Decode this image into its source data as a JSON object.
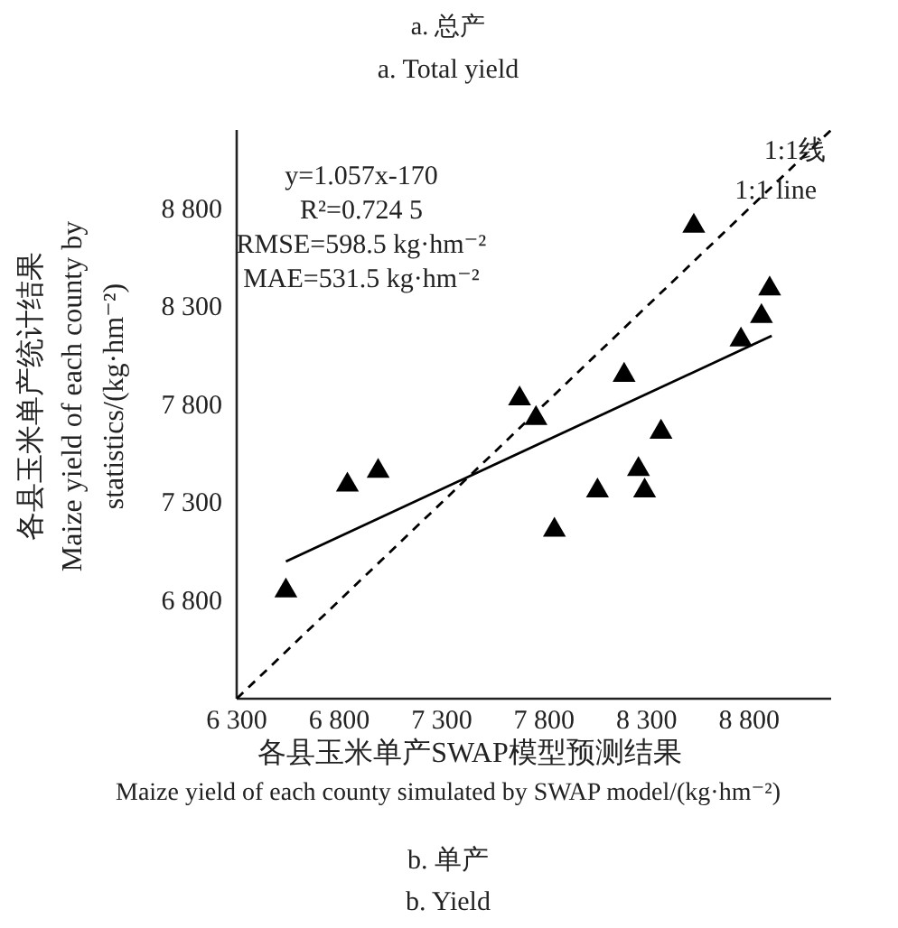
{
  "chart_data": {
    "type": "scatter",
    "title": "b. 单产",
    "subtitle": "b. Yield",
    "xlabel": "各县玉米单产SWAP模型预测结果\nMaize yield of each county simulated by SWAP model/(kg·hm⁻²)",
    "ylabel": "各县玉米单产统计结果\nMaize yield of each county by\nstatistics/(kg·hm⁻²)",
    "annotations": [
      "a. 总产",
      "a. Total yield",
      "y=1.057x-170",
      "R²=0.724 5",
      "RMSE=598.5 kg·hm⁻²",
      "MAE=531.5 kg·hm⁻²",
      "1:1线",
      "1:1 line"
    ],
    "xlim": [
      6300,
      9200
    ],
    "ylim": [
      6300,
      9200
    ],
    "xticks": [
      {
        "value": 6300,
        "label": "6 300"
      },
      {
        "value": 6800,
        "label": "6 800"
      },
      {
        "value": 7300,
        "label": "7 300"
      },
      {
        "value": 7800,
        "label": "7 800"
      },
      {
        "value": 8300,
        "label": "8 300"
      },
      {
        "value": 8800,
        "label": "8 800"
      }
    ],
    "yticks": [
      {
        "value": 6800,
        "label": "6 800"
      },
      {
        "value": 7300,
        "label": "7 300"
      },
      {
        "value": 7800,
        "label": "7 800"
      },
      {
        "value": 8300,
        "label": "8 300"
      },
      {
        "value": 8800,
        "label": "8 800"
      }
    ],
    "grid": false,
    "marker": "triangle",
    "series": [
      {
        "color": "#000000",
        "x": [
          6540,
          6840,
          6990,
          7680,
          7760,
          7850,
          8060,
          8190,
          8260,
          8290,
          8370,
          8530,
          8760,
          8860,
          8900
        ],
        "values": [
          6850,
          7390,
          7460,
          7830,
          7730,
          7160,
          7360,
          7950,
          7470,
          7360,
          7660,
          8710,
          8130,
          8250,
          8390
        ]
      },
      {
        "type": "line",
        "color": "#000000",
        "line_style": "solid",
        "marker": "none",
        "x": [
          6540,
          8910
        ],
        "values": [
          7000,
          8150
        ]
      },
      {
        "type": "line",
        "color": "#000000",
        "line_style": "dashed",
        "marker": "none",
        "x": [
          6300,
          9200
        ],
        "values": [
          6300,
          9200
        ]
      }
    ]
  }
}
